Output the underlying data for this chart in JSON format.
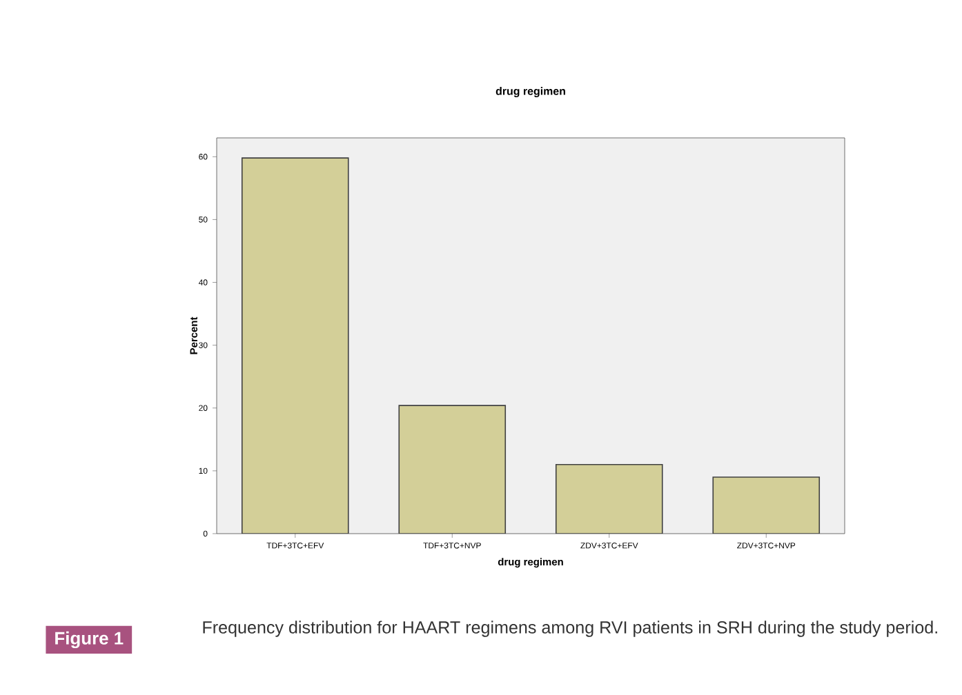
{
  "chart_data": {
    "type": "bar",
    "title": "drug regimen",
    "xlabel": "drug regimen",
    "ylabel": "Percent",
    "categories": [
      "TDF+3TC+EFV",
      "TDF+3TC+NVP",
      "ZDV+3TC+EFV",
      "ZDV+3TC+NVP"
    ],
    "values": [
      59.8,
      20.4,
      11.0,
      9.0
    ],
    "color": "#d3cf98",
    "ylim": [
      0,
      63
    ],
    "yticks": [
      0,
      10,
      20,
      30,
      40,
      50,
      60
    ],
    "annotations": [
      "Figure 1",
      "Frequency distribution for HAART regimens among RVI patients in SRH during the study period."
    ]
  }
}
